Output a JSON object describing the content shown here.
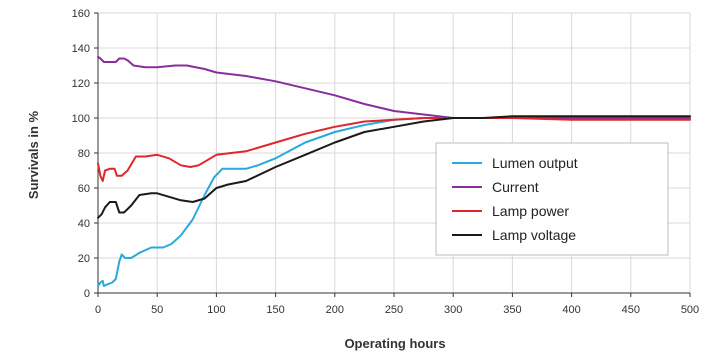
{
  "chart_data": {
    "type": "line",
    "title": "",
    "xlabel": "Operating hours",
    "ylabel": "Survivals in %",
    "xlim": [
      0,
      500
    ],
    "ylim": [
      0,
      160
    ],
    "xticks": [
      0,
      50,
      100,
      150,
      200,
      250,
      300,
      350,
      400,
      450,
      500
    ],
    "yticks": [
      0,
      20,
      40,
      60,
      80,
      100,
      120,
      140,
      160
    ],
    "grid": true,
    "legend_position": "right",
    "series": [
      {
        "name": "Lumen output",
        "color": "#2aa9df",
        "points": [
          [
            0,
            4
          ],
          [
            2,
            6
          ],
          [
            4,
            7
          ],
          [
            5,
            4
          ],
          [
            8,
            5
          ],
          [
            12,
            6
          ],
          [
            15,
            8
          ],
          [
            18,
            18
          ],
          [
            20,
            22
          ],
          [
            23,
            20
          ],
          [
            28,
            20
          ],
          [
            35,
            23
          ],
          [
            45,
            26
          ],
          [
            55,
            26
          ],
          [
            62,
            28
          ],
          [
            70,
            33
          ],
          [
            80,
            42
          ],
          [
            90,
            56
          ],
          [
            98,
            66
          ],
          [
            105,
            71
          ],
          [
            115,
            71
          ],
          [
            125,
            71
          ],
          [
            135,
            73
          ],
          [
            150,
            77
          ],
          [
            175,
            86
          ],
          [
            200,
            92
          ],
          [
            225,
            96
          ],
          [
            250,
            99
          ],
          [
            275,
            100
          ],
          [
            300,
            100
          ],
          [
            350,
            100
          ],
          [
            400,
            100
          ],
          [
            450,
            100
          ],
          [
            500,
            100
          ]
        ]
      },
      {
        "name": "Current",
        "color": "#8a2e9e",
        "points": [
          [
            0,
            135
          ],
          [
            2,
            134
          ],
          [
            5,
            132
          ],
          [
            10,
            132
          ],
          [
            15,
            132
          ],
          [
            18,
            134
          ],
          [
            22,
            134
          ],
          [
            25,
            133
          ],
          [
            30,
            130
          ],
          [
            40,
            129
          ],
          [
            50,
            129
          ],
          [
            65,
            130
          ],
          [
            75,
            130
          ],
          [
            90,
            128
          ],
          [
            100,
            126
          ],
          [
            125,
            124
          ],
          [
            150,
            121
          ],
          [
            175,
            117
          ],
          [
            200,
            113
          ],
          [
            225,
            108
          ],
          [
            250,
            104
          ],
          [
            275,
            102
          ],
          [
            300,
            100
          ],
          [
            350,
            100
          ],
          [
            400,
            100
          ],
          [
            450,
            100
          ],
          [
            500,
            100
          ]
        ]
      },
      {
        "name": "Lamp power",
        "color": "#e0262d",
        "points": [
          [
            0,
            74
          ],
          [
            2,
            67
          ],
          [
            4,
            64
          ],
          [
            6,
            70
          ],
          [
            10,
            71
          ],
          [
            14,
            71
          ],
          [
            16,
            67
          ],
          [
            20,
            67
          ],
          [
            25,
            70
          ],
          [
            32,
            78
          ],
          [
            40,
            78
          ],
          [
            50,
            79
          ],
          [
            60,
            77
          ],
          [
            70,
            73
          ],
          [
            78,
            72
          ],
          [
            85,
            73
          ],
          [
            95,
            77
          ],
          [
            100,
            79
          ],
          [
            125,
            81
          ],
          [
            150,
            86
          ],
          [
            175,
            91
          ],
          [
            200,
            95
          ],
          [
            225,
            98
          ],
          [
            250,
            99
          ],
          [
            275,
            100
          ],
          [
            300,
            100
          ],
          [
            350,
            100
          ],
          [
            400,
            99
          ],
          [
            450,
            99
          ],
          [
            500,
            99
          ]
        ]
      },
      {
        "name": "Lamp voltage",
        "color": "#1a1a1a",
        "points": [
          [
            0,
            43
          ],
          [
            3,
            45
          ],
          [
            6,
            49
          ],
          [
            10,
            52
          ],
          [
            15,
            52
          ],
          [
            18,
            46
          ],
          [
            22,
            46
          ],
          [
            28,
            50
          ],
          [
            35,
            56
          ],
          [
            45,
            57
          ],
          [
            50,
            57
          ],
          [
            60,
            55
          ],
          [
            70,
            53
          ],
          [
            80,
            52
          ],
          [
            90,
            54
          ],
          [
            100,
            60
          ],
          [
            110,
            62
          ],
          [
            125,
            64
          ],
          [
            150,
            72
          ],
          [
            175,
            79
          ],
          [
            200,
            86
          ],
          [
            225,
            92
          ],
          [
            250,
            95
          ],
          [
            275,
            98
          ],
          [
            300,
            100
          ],
          [
            325,
            100
          ],
          [
            350,
            101
          ],
          [
            375,
            101
          ],
          [
            400,
            101
          ],
          [
            450,
            101
          ],
          [
            500,
            101
          ]
        ]
      }
    ]
  }
}
